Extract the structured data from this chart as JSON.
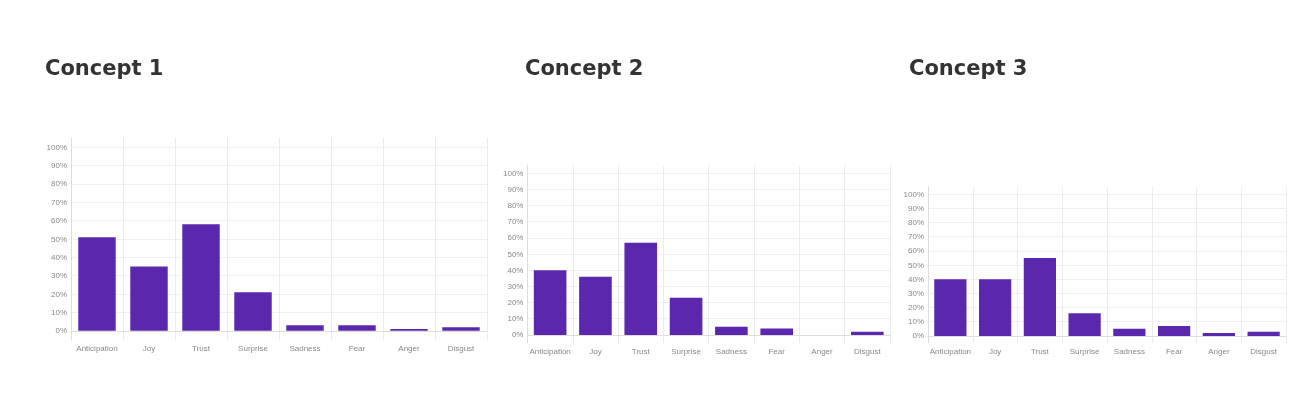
{
  "chart_data": [
    {
      "type": "bar",
      "title": "Concept 1",
      "categories": [
        "Anticipation",
        "Joy",
        "Trust",
        "Surprise",
        "Sadness",
        "Fear",
        "Anger",
        "Disgust"
      ],
      "values": [
        51,
        35,
        58,
        21,
        3,
        3,
        1,
        2
      ],
      "color": "#5b27ad",
      "ylim": [
        -5,
        105
      ],
      "yticks": [
        {
          "value": 0,
          "label": "0%"
        },
        {
          "value": 10,
          "label": "10%"
        },
        {
          "value": 20,
          "label": "20%"
        },
        {
          "value": 30,
          "label": "30%"
        },
        {
          "value": 40,
          "label": "40%"
        },
        {
          "value": 50,
          "label": "50%"
        },
        {
          "value": 60,
          "label": "60%"
        },
        {
          "value": 70,
          "label": "70%"
        },
        {
          "value": 80,
          "label": "80%"
        },
        {
          "value": 90,
          "label": "90%"
        },
        {
          "value": 100,
          "label": "100%"
        }
      ],
      "grid": true
    },
    {
      "type": "bar",
      "title": "Concept 2",
      "categories": [
        "Anticipation",
        "Joy",
        "Trust",
        "Surprise",
        "Sadness",
        "Fear",
        "Anger",
        "Disgust"
      ],
      "values": [
        40,
        36,
        57,
        23,
        5,
        4,
        0,
        2
      ],
      "color": "#5b27ad",
      "ylim": [
        -5,
        105
      ],
      "yticks": [
        {
          "value": 0,
          "label": "0%"
        },
        {
          "value": 10,
          "label": "10%"
        },
        {
          "value": 20,
          "label": "20%"
        },
        {
          "value": 30,
          "label": "30%"
        },
        {
          "value": 40,
          "label": "40%"
        },
        {
          "value": 50,
          "label": "50%"
        },
        {
          "value": 60,
          "label": "60%"
        },
        {
          "value": 70,
          "label": "70%"
        },
        {
          "value": 80,
          "label": "80%"
        },
        {
          "value": 90,
          "label": "90%"
        },
        {
          "value": 100,
          "label": "100%"
        }
      ],
      "grid": true
    },
    {
      "type": "bar",
      "title": "Concept 3",
      "categories": [
        "Anticipation",
        "Joy",
        "Trust",
        "Surprise",
        "Sadness",
        "Fear",
        "Anger",
        "Disgust"
      ],
      "values": [
        40,
        40,
        55,
        16,
        5,
        7,
        2,
        3
      ],
      "color": "#5b27ad",
      "ylim": [
        -5,
        105
      ],
      "yticks": [
        {
          "value": 0,
          "label": "0%"
        },
        {
          "value": 10,
          "label": "10%"
        },
        {
          "value": 20,
          "label": "20%"
        },
        {
          "value": 30,
          "label": "30%"
        },
        {
          "value": 40,
          "label": "40%"
        },
        {
          "value": 50,
          "label": "50%"
        },
        {
          "value": 60,
          "label": "60%"
        },
        {
          "value": 70,
          "label": "70%"
        },
        {
          "value": 80,
          "label": "80%"
        },
        {
          "value": 90,
          "label": "90%"
        },
        {
          "value": 100,
          "label": "100%"
        }
      ],
      "grid": true
    }
  ]
}
